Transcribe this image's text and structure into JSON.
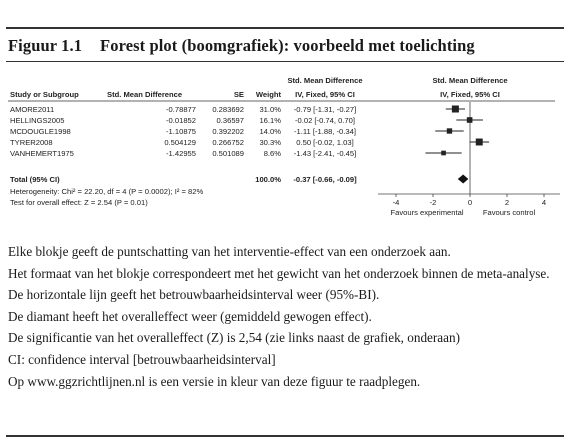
{
  "figure": {
    "number": "Figuur 1.1",
    "title": "Forest plot (boomgrafiek): voorbeeld met toelichting"
  },
  "table": {
    "group_header": "Std. Mean Difference",
    "group_header_right": "Std. Mean Difference",
    "columns": {
      "study": "Study or Subgroup",
      "smd": "Std. Mean Difference",
      "se": "SE",
      "weight": "Weight",
      "ci": "IV, Fixed, 95% CI",
      "ci_right": "IV, Fixed, 95% CI"
    },
    "rows": [
      {
        "study": "AMORE2011",
        "smd": "-0.78877",
        "se": "0.283692",
        "weight": "31.0%",
        "ci": "-0.79 [-1.31, -0.27]"
      },
      {
        "study": "HELLINGS2005",
        "smd": "-0.01852",
        "se": "0.36597",
        "weight": "16.1%",
        "ci": "-0.02 [-0.74, 0.70]"
      },
      {
        "study": "MCDOUGLE1998",
        "smd": "-1.10875",
        "se": "0.392202",
        "weight": "14.0%",
        "ci": "-1.11 [-1.88, -0.34]"
      },
      {
        "study": "TYRER2008",
        "smd": "0.504129",
        "se": "0.266752",
        "weight": "30.3%",
        "ci": "0.50 [-0.02, 1.03]"
      },
      {
        "study": "VANHEMERT1975",
        "smd": "-1.42955",
        "se": "0.501089",
        "weight": "8.6%",
        "ci": "-1.43 [-2.41, -0.45]"
      }
    ],
    "total": {
      "label": "Total (95% CI)",
      "weight": "100.0%",
      "ci": "-0.37 [-0.66, -0.09]"
    },
    "heterogeneity": "Heterogeneity: Chi² = 22.20, df = 4 (P = 0.0002); I² = 82%",
    "overall_test": "Test for overall effect: Z = 2.54 (P = 0.01)"
  },
  "chart_data": {
    "type": "forest",
    "x_ticks": [
      "-4",
      "-2",
      "0",
      "2",
      "4"
    ],
    "xlim": [
      -4,
      4
    ],
    "favours_left": "Favours experimental",
    "favours_right": "Favours control",
    "studies": [
      {
        "name": "AMORE2011",
        "estimate": -0.79,
        "lower": -1.31,
        "upper": -0.27,
        "weight": 31.0
      },
      {
        "name": "HELLINGS2005",
        "estimate": -0.02,
        "lower": -0.74,
        "upper": 0.7,
        "weight": 16.1
      },
      {
        "name": "MCDOUGLE1998",
        "estimate": -1.11,
        "lower": -1.88,
        "upper": -0.34,
        "weight": 14.0
      },
      {
        "name": "TYRER2008",
        "estimate": 0.5,
        "lower": -0.02,
        "upper": 1.03,
        "weight": 30.3
      },
      {
        "name": "VANHEMERT1975",
        "estimate": -1.43,
        "lower": -2.41,
        "upper": -0.45,
        "weight": 8.6
      }
    ],
    "total": {
      "estimate": -0.37,
      "lower": -0.66,
      "upper": -0.09
    }
  },
  "caption": [
    "Elke blokje geeft de puntschatting van het interventie-effect van een onderzoek aan.",
    "Het formaat van het blokje correspondeert met het gewicht van het onderzoek binnen de meta-analyse.",
    "De horizontale lijn geeft het betrouwbaarheidsinterval weer (95%-BI).",
    "De diamant heeft het overalleffect weer (gemiddeld gewogen effect).",
    "De significantie van het overalleffect (Z) is 2,54 (zie links naast de grafiek, onderaan)",
    "CI: confidence interval [betrouwbaarheidsinterval]",
    "Op www.ggzrichtlijnen.nl is een versie in kleur van deze figuur te raadplegen."
  ]
}
